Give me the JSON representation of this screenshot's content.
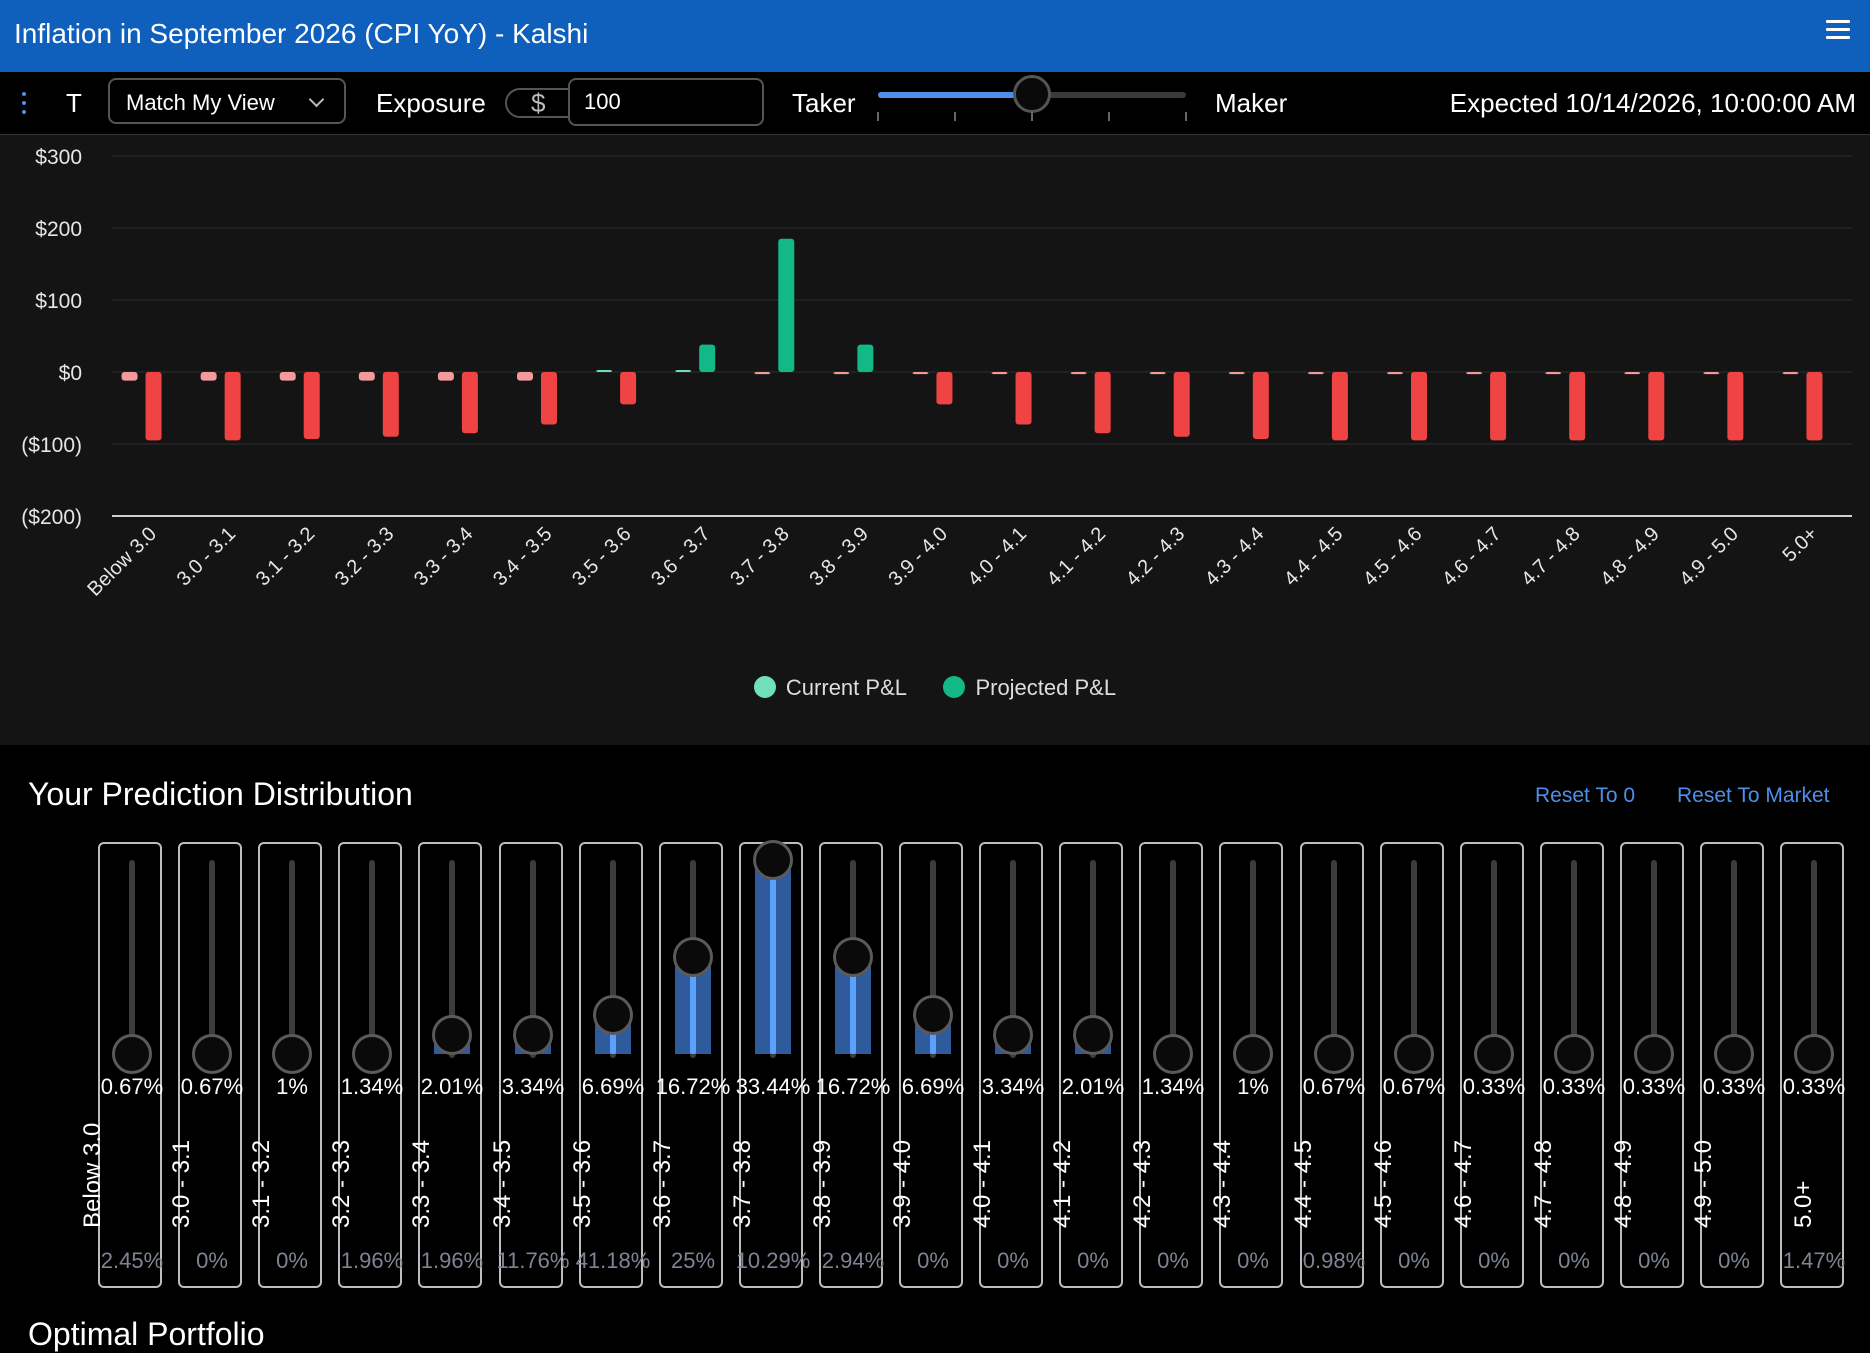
{
  "header": {
    "title": "Inflation in September 2026 (CPI YoY) - Kalshi",
    "menu_icon": "hamburger-icon"
  },
  "toolbar": {
    "t_label": "T",
    "view_select": "Match My View",
    "exposure_label": "Exposure",
    "currency_symbol": "$",
    "exposure_value": "100",
    "taker_label": "Taker",
    "maker_label": "Maker",
    "slider_level": 0.5,
    "expected": "Expected 10/14/2026, 10:00:00 AM"
  },
  "chart_data": {
    "type": "bar",
    "categories": [
      "Below 3.0",
      "3.0 - 3.1",
      "3.1 - 3.2",
      "3.2 - 3.3",
      "3.3 - 3.4",
      "3.4 - 3.5",
      "3.5 - 3.6",
      "3.6 - 3.7",
      "3.7 - 3.8",
      "3.8 - 3.9",
      "3.9 - 4.0",
      "4.0 - 4.1",
      "4.1 - 4.2",
      "4.2 - 4.3",
      "4.3 - 4.4",
      "4.4 - 4.5",
      "4.5 - 4.6",
      "4.6 - 4.7",
      "4.7 - 4.8",
      "4.8 - 4.9",
      "4.9 - 5.0",
      "5.0+"
    ],
    "series": [
      {
        "name": "Current P&L",
        "color": "#6fe0b8",
        "neg_color": "#f49a9a",
        "values": [
          -12,
          -12,
          -12,
          -12,
          -12,
          -12,
          2,
          2,
          -3,
          -3,
          -3,
          -3,
          -3,
          -3,
          -3,
          -3,
          -3,
          -3,
          -3,
          -3,
          -3,
          -3
        ]
      },
      {
        "name": "Projected P&L",
        "color": "#12b886",
        "neg_color": "#f04444",
        "values": [
          -95,
          -95,
          -93,
          -90,
          -85,
          -73,
          -45,
          38,
          185,
          38,
          -45,
          -73,
          -85,
          -90,
          -93,
          -95,
          -95,
          -95,
          -95,
          -95,
          -95,
          -95
        ]
      }
    ],
    "y_ticks": [
      "$300",
      "$200",
      "$100",
      "$0",
      "($100)",
      "($200)"
    ],
    "ylim": [
      -200,
      300
    ],
    "grid": true,
    "legend_position": "bottom-center"
  },
  "prediction": {
    "title": "Your Prediction Distribution",
    "reset_zero": "Reset To 0",
    "reset_market": "Reset To Market",
    "columns": [
      {
        "label": "Below 3.0",
        "pct": "0.67%",
        "market": "2.45%",
        "level": 0.0
      },
      {
        "label": "3.0 - 3.1",
        "pct": "0.67%",
        "market": "0%",
        "level": 0.0
      },
      {
        "label": "3.1 - 3.2",
        "pct": "1%",
        "market": "0%",
        "level": 0.0
      },
      {
        "label": "3.2 - 3.3",
        "pct": "1.34%",
        "market": "1.96%",
        "level": 0.0
      },
      {
        "label": "3.3 - 3.4",
        "pct": "2.01%",
        "market": "1.96%",
        "level": 0.1
      },
      {
        "label": "3.4 - 3.5",
        "pct": "3.34%",
        "market": "11.76%",
        "level": 0.1
      },
      {
        "label": "3.5 - 3.6",
        "pct": "6.69%",
        "market": "41.18%",
        "level": 0.2
      },
      {
        "label": "3.6 - 3.7",
        "pct": "16.72%",
        "market": "25%",
        "level": 0.5
      },
      {
        "label": "3.7 - 3.8",
        "pct": "33.44%",
        "market": "10.29%",
        "level": 1.0
      },
      {
        "label": "3.8 - 3.9",
        "pct": "16.72%",
        "market": "2.94%",
        "level": 0.5
      },
      {
        "label": "3.9 - 4.0",
        "pct": "6.69%",
        "market": "0%",
        "level": 0.2
      },
      {
        "label": "4.0 - 4.1",
        "pct": "3.34%",
        "market": "0%",
        "level": 0.1
      },
      {
        "label": "4.1 - 4.2",
        "pct": "2.01%",
        "market": "0%",
        "level": 0.1
      },
      {
        "label": "4.2 - 4.3",
        "pct": "1.34%",
        "market": "0%",
        "level": 0.0
      },
      {
        "label": "4.3 - 4.4",
        "pct": "1%",
        "market": "0%",
        "level": 0.0
      },
      {
        "label": "4.4 - 4.5",
        "pct": "0.67%",
        "market": "0.98%",
        "level": 0.0
      },
      {
        "label": "4.5 - 4.6",
        "pct": "0.67%",
        "market": "0%",
        "level": 0.0
      },
      {
        "label": "4.6 - 4.7",
        "pct": "0.33%",
        "market": "0%",
        "level": 0.0
      },
      {
        "label": "4.7 - 4.8",
        "pct": "0.33%",
        "market": "0%",
        "level": 0.0
      },
      {
        "label": "4.8 - 4.9",
        "pct": "0.33%",
        "market": "0%",
        "level": 0.0
      },
      {
        "label": "4.9 - 5.0",
        "pct": "0.33%",
        "market": "0%",
        "level": 0.0
      },
      {
        "label": "5.0+",
        "pct": "0.33%",
        "market": "1.47%",
        "level": 0.0
      }
    ]
  },
  "optimal": {
    "title": "Optimal Portfolio"
  }
}
